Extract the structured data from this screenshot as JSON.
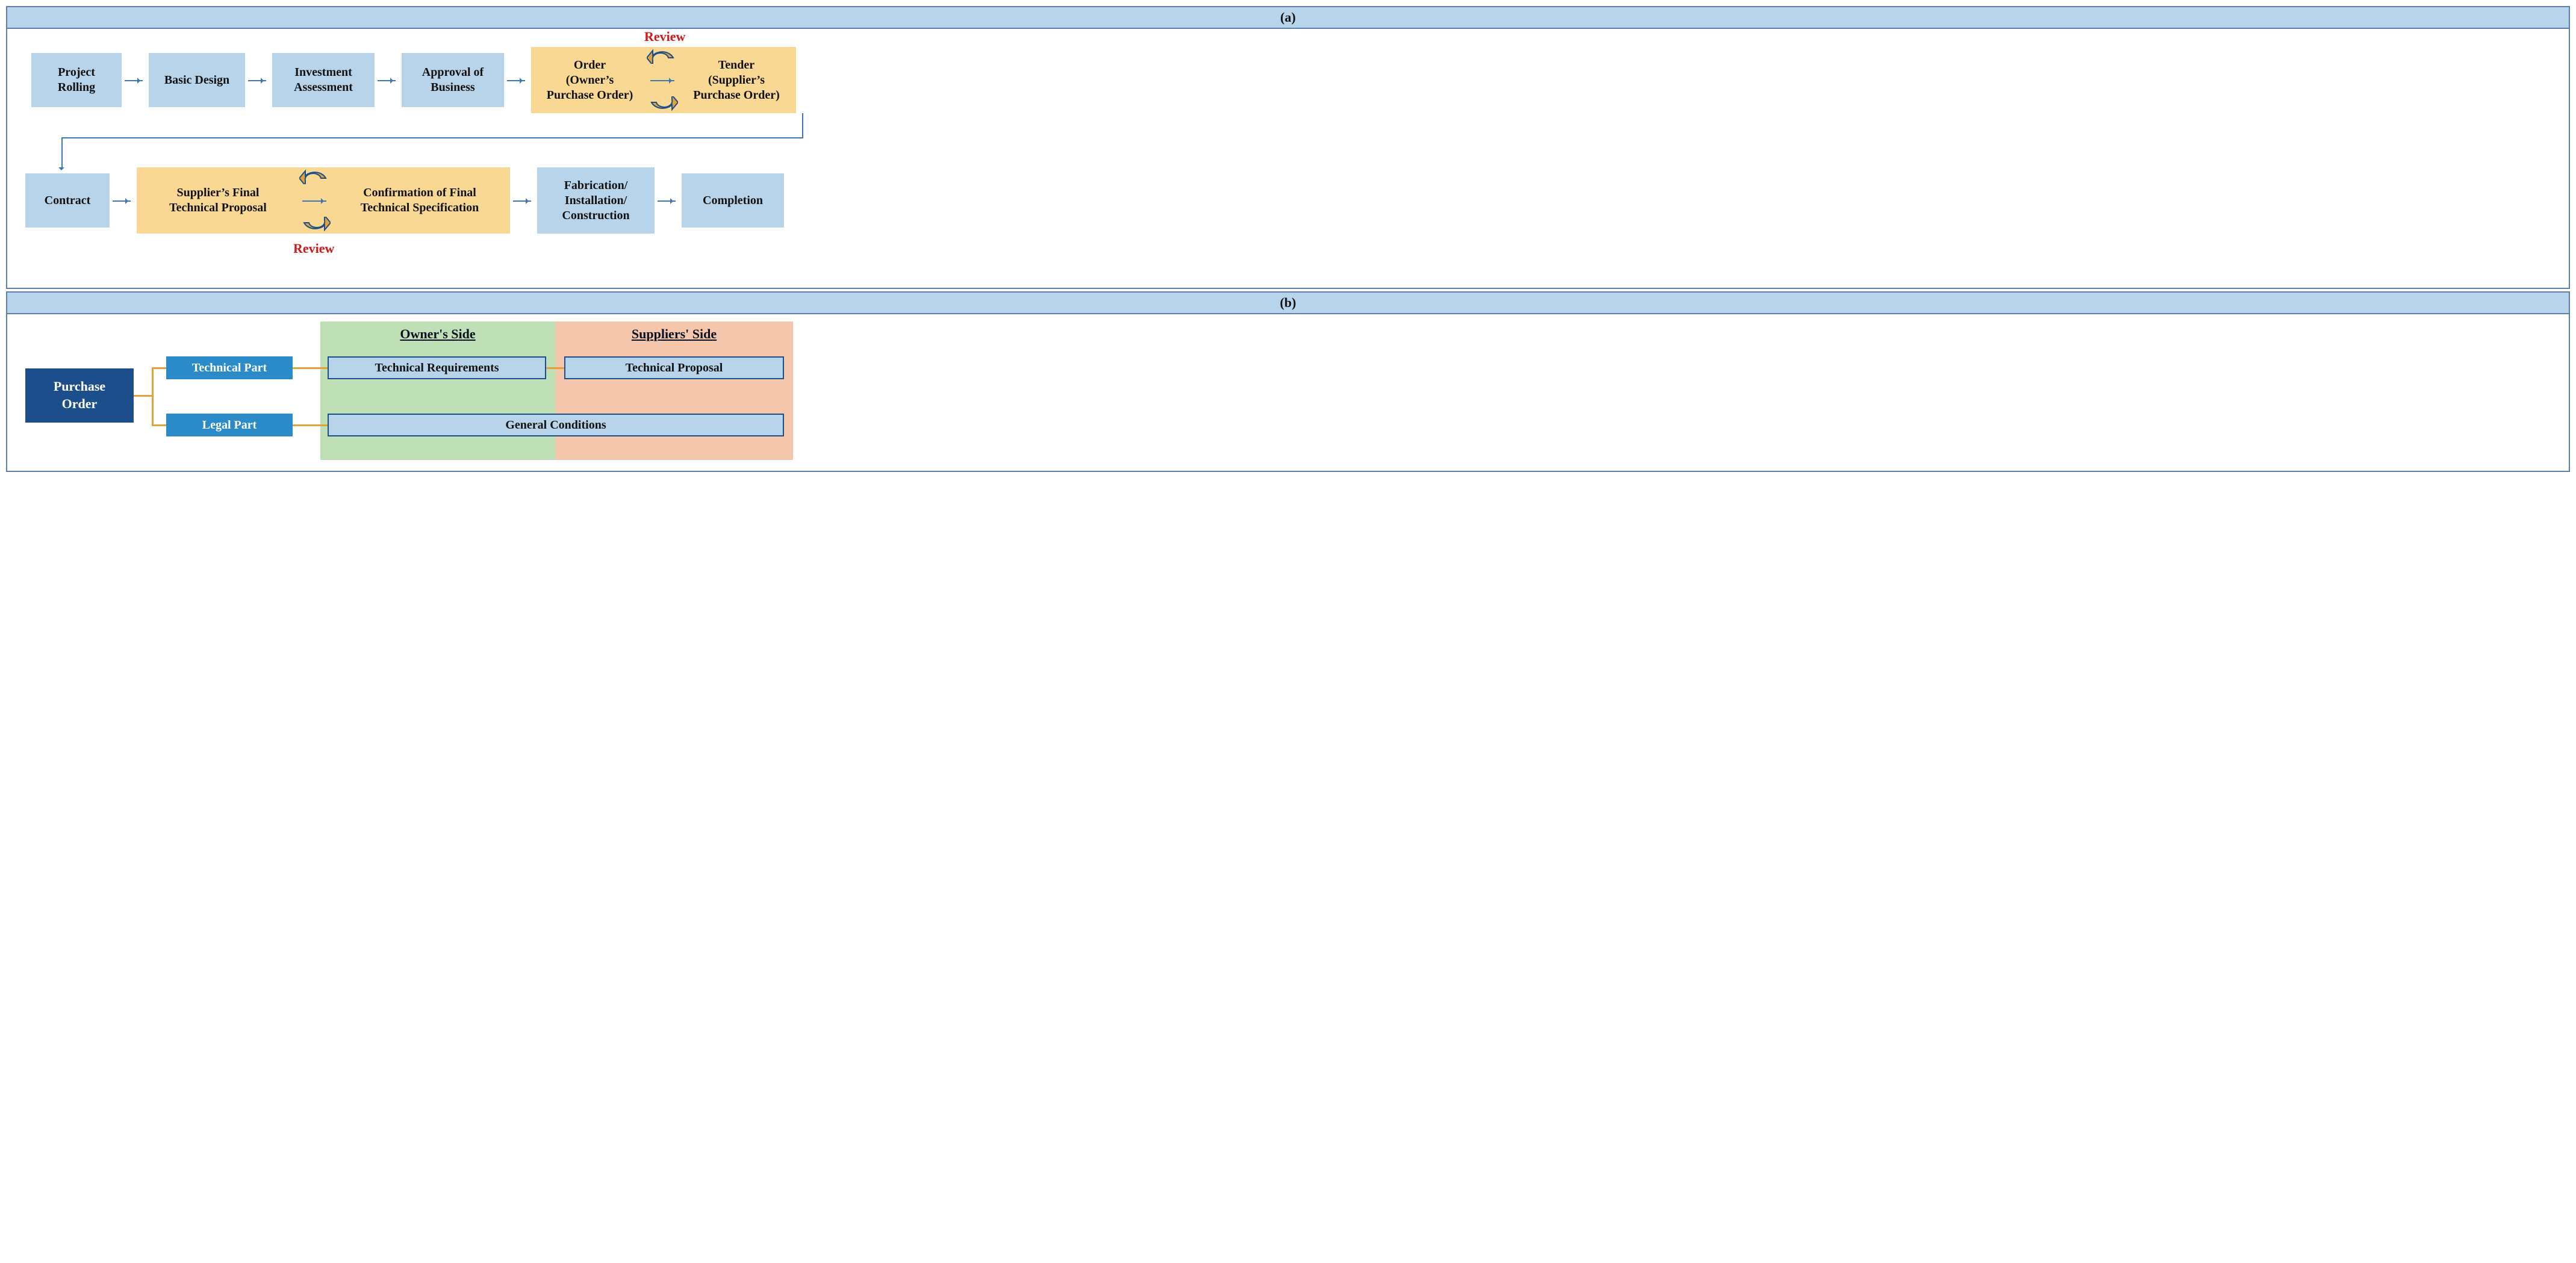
{
  "colors": {
    "border": "#5b7fa6",
    "header_bg": "#b7d4ea",
    "box_blue": "#b7d4ea",
    "box_gold": "#f8d893",
    "arrow": "#3c78b4",
    "review_text": "#d11919",
    "cyc_fill": "#e2a23a",
    "cyc_stroke": "#1b4e8a",
    "b_root_bg": "#1b4e8a",
    "b_part_bg": "#2b8bc9",
    "b_zone_green": "#bfe0b7",
    "b_zone_peach": "#f4c7ac",
    "b_conn": "#e2a23a"
  },
  "fonts": {
    "family": "Palatino / serif",
    "box_pt": 20,
    "header_pt": 22,
    "review_pt": 22
  },
  "a": {
    "header": "(a)",
    "nodes": [
      {
        "id": "n1",
        "label": "Project\nRolling",
        "style": "blue",
        "row": 1
      },
      {
        "id": "n2",
        "label": "Basic Design",
        "style": "blue",
        "row": 1
      },
      {
        "id": "n3",
        "label": "Investment\nAssessment",
        "style": "blue",
        "row": 1
      },
      {
        "id": "n4",
        "label": "Approval of\nBusiness",
        "style": "blue",
        "row": 1
      },
      {
        "id": "n5",
        "label": "Order\n(Owner's\nPurchase Order)",
        "style": "gold-group-left",
        "row": 1
      },
      {
        "id": "n6",
        "label": "Tender\n(Supplier's\nPurchase Order)",
        "style": "gold-group-right",
        "row": 1
      },
      {
        "id": "n7",
        "label": "Contract",
        "style": "blue",
        "row": 2
      },
      {
        "id": "n8",
        "label": "Supplier's Final\nTechnical Proposal",
        "style": "gold-group-left",
        "row": 2
      },
      {
        "id": "n9",
        "label": "Confirmation of Final\nTechnical Specification",
        "style": "gold-group-right",
        "row": 2
      },
      {
        "id": "n10",
        "label": "Fabrication/\nInstallation/\nConstruction",
        "style": "blue",
        "row": 2
      },
      {
        "id": "n11",
        "label": "Completion",
        "style": "blue",
        "row": 2
      }
    ],
    "review_label": "Review",
    "edges_sequence": [
      "n1",
      "n2",
      "n3",
      "n4",
      "n5",
      "n6",
      "n7",
      "n8",
      "n9",
      "n10",
      "n11"
    ],
    "review_cycles": [
      {
        "between": [
          "n5",
          "n6"
        ],
        "label_pos": "above"
      },
      {
        "between": [
          "n8",
          "n9"
        ],
        "label_pos": "below"
      }
    ]
  },
  "b": {
    "header": "(b)",
    "root": "Purchase\nOrder",
    "parts": [
      {
        "id": "tech",
        "label": "Technical Part"
      },
      {
        "id": "legal",
        "label": "Legal Part"
      }
    ],
    "zones": [
      {
        "id": "owner",
        "title": "Owner's Side",
        "bg": "#bfe0b7"
      },
      {
        "id": "supplier",
        "title": "Suppliers' Side",
        "bg": "#f4c7ac"
      }
    ],
    "slots": [
      {
        "part": "tech",
        "zone": "owner",
        "label": "Technical Requirements"
      },
      {
        "part": "tech",
        "zone": "supplier",
        "label": "Technical Proposal"
      },
      {
        "part": "legal",
        "zone": "both",
        "label": "General Conditions"
      }
    ]
  }
}
